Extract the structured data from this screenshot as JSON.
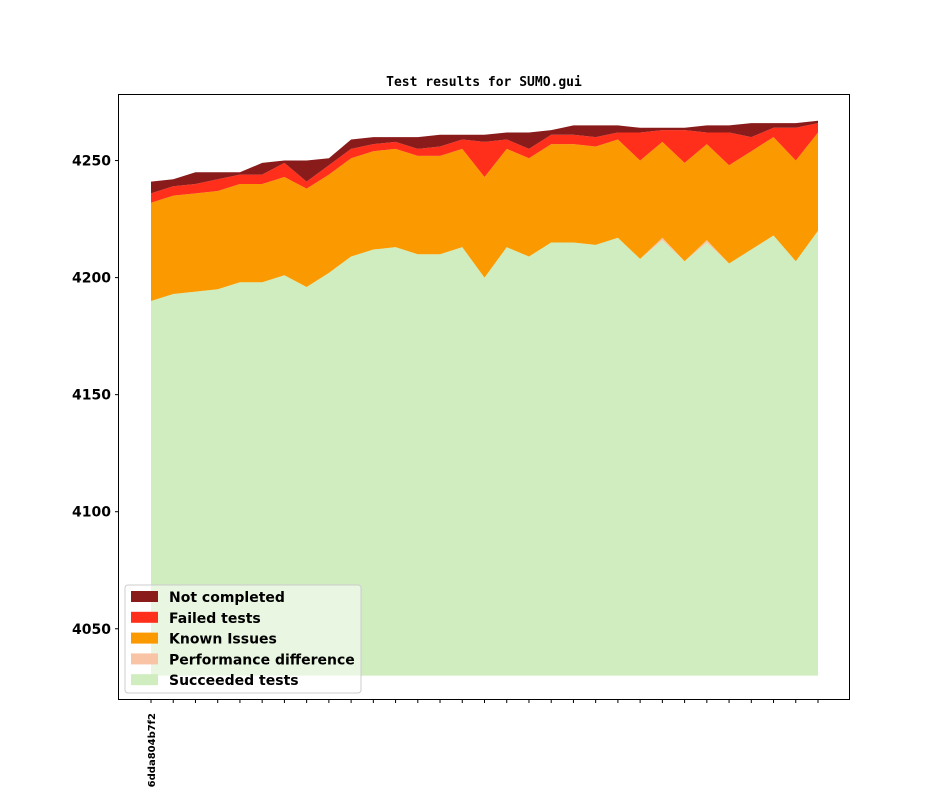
{
  "chart_data": {
    "type": "area",
    "title": "Test results for SUMO.gui",
    "xlabel": "",
    "ylabel": "",
    "ylim": [
      4020,
      4278
    ],
    "yticks": [
      4050,
      4100,
      4150,
      4200,
      4250
    ],
    "baseline": 4030,
    "categories": [
      "6dda804b7f2",
      "",
      "",
      "",
      "",
      "",
      "",
      "",
      "",
      "",
      "",
      "",
      "",
      "",
      "",
      "",
      "",
      "",
      "",
      "",
      "",
      "",
      "",
      "",
      "",
      "",
      "",
      "",
      "",
      "",
      ""
    ],
    "series": [
      {
        "name": "Succeeded tests",
        "color": "#cfedbf",
        "values": [
          4190,
          4193,
          4194,
          4195,
          4198,
          4198,
          4201,
          4196,
          4202,
          4209,
          4212,
          4213,
          4210,
          4210,
          4213,
          4200,
          4213,
          4209,
          4215,
          4215,
          4214,
          4217,
          4208,
          4216,
          4207,
          4215,
          4206,
          4212,
          4218,
          4207,
          4220
        ]
      },
      {
        "name": "Performance difference",
        "color": "#f9c3a6",
        "values": [
          0,
          0,
          0,
          0,
          0,
          0,
          0,
          0,
          0,
          0,
          0,
          0,
          0,
          0,
          0,
          0,
          0,
          0,
          0,
          0,
          0,
          0,
          0,
          1,
          0,
          1,
          0,
          0,
          0,
          0,
          0
        ]
      },
      {
        "name": "Known Issues",
        "color": "#fb9a00",
        "values": [
          42,
          42,
          42,
          42,
          42,
          42,
          42,
          42,
          42,
          42,
          42,
          42,
          42,
          42,
          42,
          43,
          42,
          42,
          42,
          42,
          42,
          42,
          42,
          41,
          42,
          41,
          42,
          42,
          42,
          43,
          42
        ]
      },
      {
        "name": "Failed tests",
        "color": "#ff2f1b",
        "values": [
          4,
          4,
          4,
          5,
          4,
          4,
          6,
          3,
          4,
          4,
          3,
          3,
          3,
          4,
          4,
          15,
          4,
          4,
          4,
          4,
          4,
          3,
          12,
          5,
          14,
          5,
          14,
          6,
          4,
          14,
          4
        ]
      },
      {
        "name": "Not completed",
        "color": "#8a1b1b",
        "values": [
          5,
          3,
          5,
          3,
          1,
          5,
          1,
          9,
          3,
          4,
          3,
          2,
          5,
          5,
          2,
          3,
          3,
          7,
          2,
          4,
          5,
          3,
          2,
          1,
          1,
          3,
          3,
          6,
          2,
          2,
          1
        ]
      }
    ],
    "legend": {
      "position": "lower-left",
      "order": [
        "Not completed",
        "Failed tests",
        "Known Issues",
        "Performance difference",
        "Succeeded tests"
      ]
    }
  }
}
